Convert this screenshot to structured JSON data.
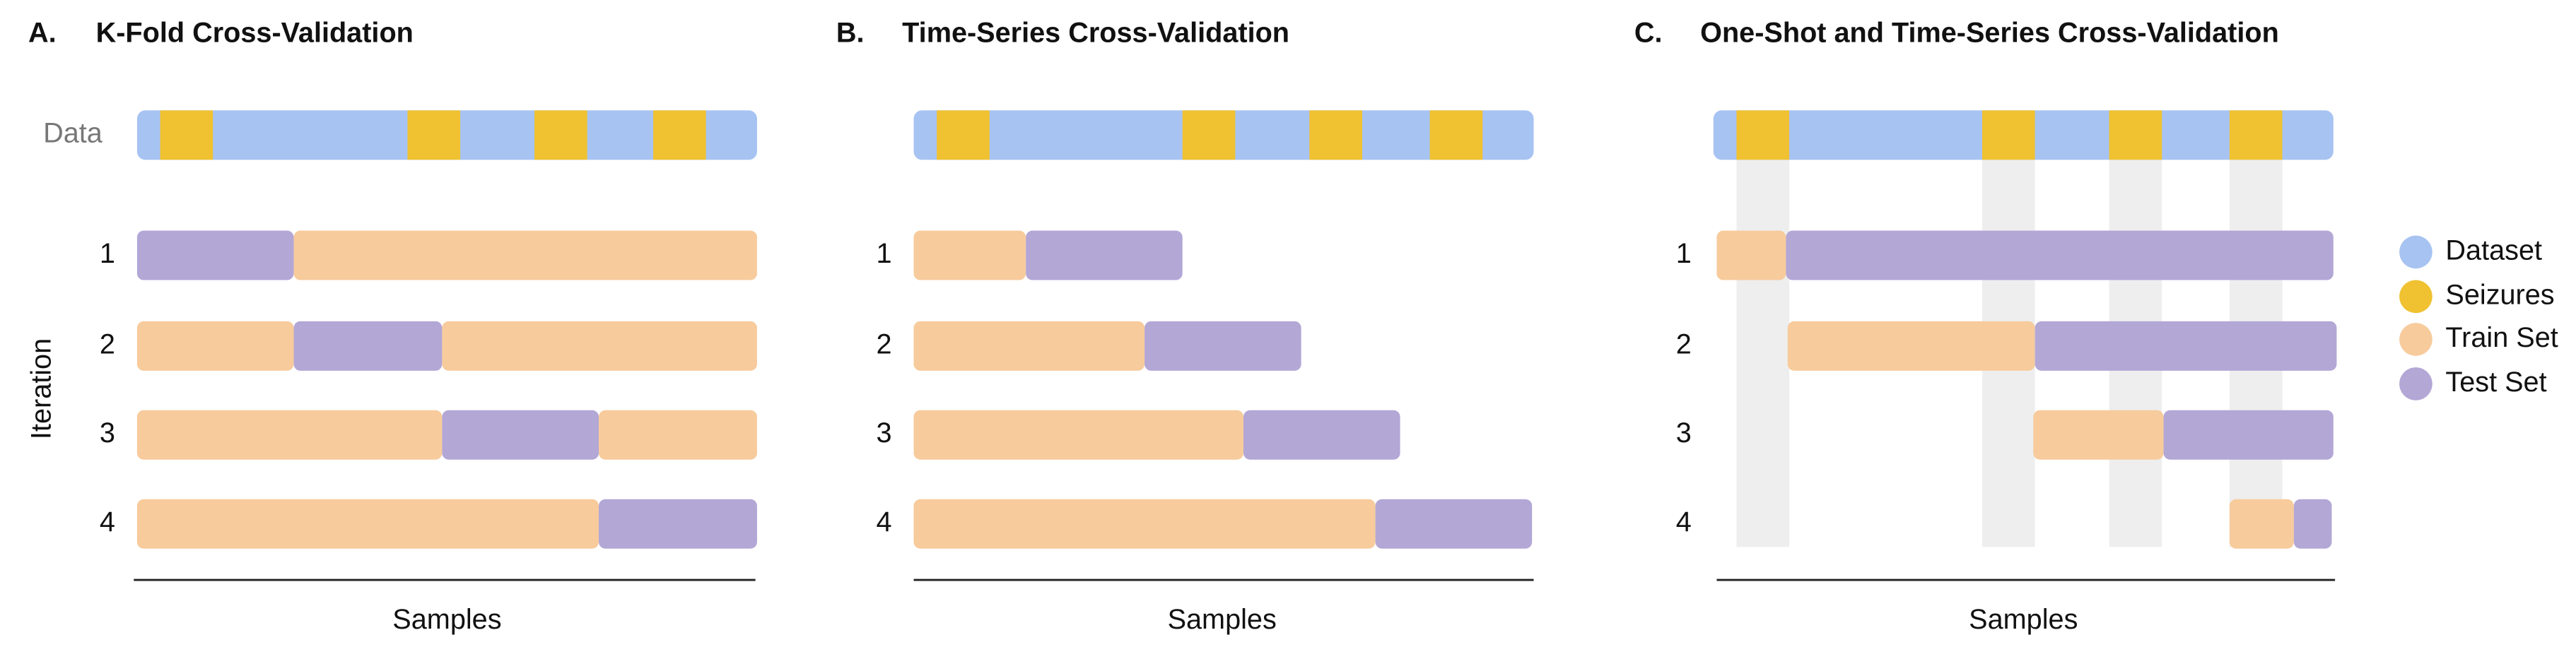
{
  "panels": [
    {
      "label": "A.",
      "title": "K-Fold Cross-Validation",
      "data_label": "Data",
      "y_label": "Iteration",
      "rows": [
        "1",
        "2",
        "3",
        "4"
      ],
      "x_label": "Samples"
    },
    {
      "label": "B.",
      "title": "Time-Series Cross-Validation",
      "rows": [
        "1",
        "2",
        "3",
        "4"
      ],
      "x_label": "Samples"
    },
    {
      "label": "C.",
      "title": "One-Shot and Time-Series Cross-Validation",
      "rows": [
        "1",
        "2",
        "3",
        "4"
      ],
      "x_label": "Samples"
    }
  ],
  "legend": [
    "Dataset",
    "Seizures",
    "Train Set",
    "Test Set"
  ]
}
